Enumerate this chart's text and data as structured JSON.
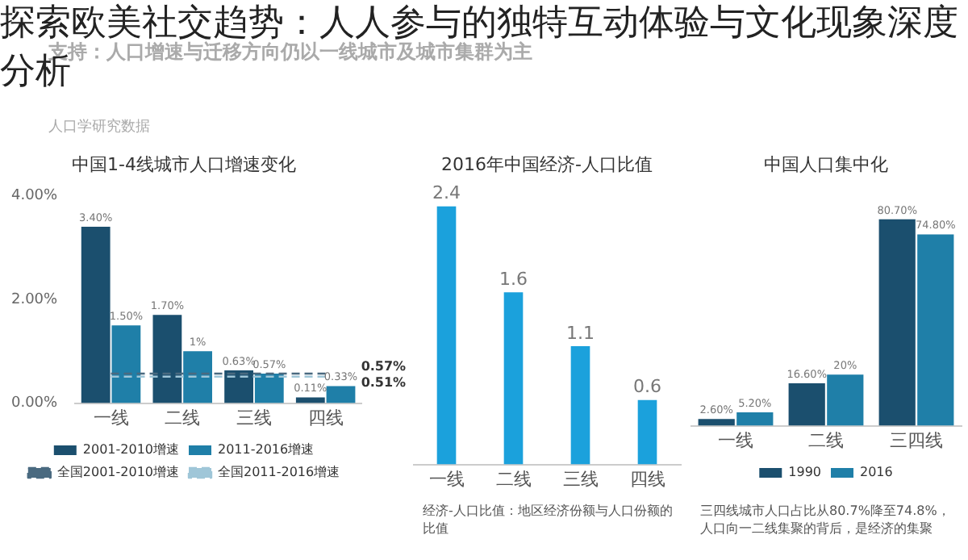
{
  "chart_data": [
    {
      "type": "other",
      "title": "探索欧美社交趋势：人人参与的独特互动体验与文化现象深度分析",
      "subtitle": "支持：人口增速与迁移方向仍以一线城市及城市集群为主",
      "annotations": [
        "人口学研究数据"
      ]
    },
    {
      "type": "bar",
      "title": "中国1-4线城市人口增速变化",
      "categories": [
        "一线",
        "二线",
        "三线",
        "四线"
      ],
      "series": [
        {
          "name": "2001-2010增速",
          "color": "#1b4f6e",
          "values": [
            3.4,
            1.7,
            0.63,
            0.11
          ],
          "value_labels": [
            "3.40%",
            "1.70%",
            "0.63%",
            "0.11%"
          ]
        },
        {
          "name": "2011-2016增速",
          "color": "#1f7fa8",
          "values": [
            1.5,
            1.0,
            0.57,
            0.33
          ],
          "value_labels": [
            "1.50%",
            "1%",
            "0.57%",
            "0.33%"
          ]
        },
        {
          "name": "全国2001-2010增速",
          "type": "line",
          "line_style": "dashed",
          "color": "#4a6a80",
          "values": [
            0.57,
            0.57,
            0.57,
            0.57
          ]
        },
        {
          "name": "全国2011-2016增速",
          "type": "line",
          "line_style": "dashed",
          "color": "#9fc6d8",
          "values": [
            0.51,
            0.51,
            0.51,
            0.51
          ]
        }
      ],
      "ylim": [
        0,
        4
      ],
      "yticks": [
        {
          "value": 0,
          "label": "0.00%"
        },
        {
          "value": 2,
          "label": "2.00%"
        },
        {
          "value": 4,
          "label": "4.00%"
        }
      ],
      "annotations": [
        {
          "text": "0.57%",
          "x": "四线",
          "y": 0.57
        },
        {
          "text": "0.51%",
          "x": "四线",
          "y": 0.51
        }
      ],
      "legend": "bottom",
      "grid": false
    },
    {
      "type": "bar",
      "title": "2016年中国经济-人口比值",
      "categories": [
        "一线",
        "二线",
        "三线",
        "四线"
      ],
      "values": [
        2.4,
        1.6,
        1.1,
        0.6
      ],
      "color": "#1ba1dc",
      "data_labels": true,
      "tick_labels": "x",
      "grid": false,
      "annotations": [
        "经济-人口比值：地区经济份额与人口份额的比值"
      ]
    },
    {
      "type": "bar",
      "title": "中国人口集中化",
      "categories": [
        "一线",
        "二线",
        "三四线"
      ],
      "series": [
        {
          "name": "1990",
          "color": "#1b4f6e",
          "values": [
            2.6,
            16.6,
            80.7
          ],
          "value_labels": [
            "2.60%",
            "16.60%",
            "80.70%"
          ]
        },
        {
          "name": "2016",
          "color": "#1f7fa8",
          "values": [
            5.2,
            20,
            74.8
          ],
          "value_labels": [
            "5.20%",
            "20%",
            "74.80%"
          ]
        }
      ],
      "tick_labels": "x",
      "legend": "bottom",
      "grid": false,
      "annotations": [
        "三四线城市人口占比从80.7%降至74.8%，人口向一二线集聚的背后，是经济的集聚"
      ]
    }
  ]
}
